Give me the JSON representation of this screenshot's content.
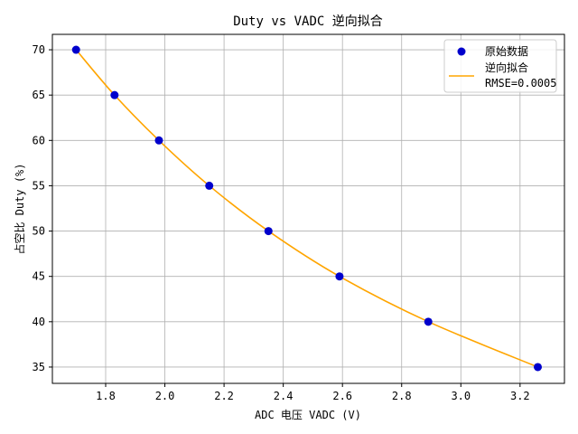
{
  "chart_data": {
    "type": "scatter",
    "title": "Duty vs VADC 逆向拟合",
    "xlabel": "ADC 电压 VADC (V)",
    "ylabel": "占空比 Duty (%)",
    "xlim": [
      1.62,
      3.35
    ],
    "ylim": [
      33.2,
      71.7
    ],
    "xticks": [
      1.8,
      2.0,
      2.2,
      2.4,
      2.6,
      2.8,
      3.0,
      3.2
    ],
    "yticks": [
      35,
      40,
      45,
      50,
      55,
      60,
      65,
      70
    ],
    "grid": true,
    "legend_position": "top-right",
    "colors": {
      "points": "#0000cc",
      "fit": "#ffa500",
      "grid": "#b0b0b0"
    },
    "series": [
      {
        "name": "原始数据",
        "kind": "scatter",
        "x": [
          1.7,
          1.83,
          1.98,
          2.15,
          2.35,
          2.59,
          2.89,
          3.26
        ],
        "y": [
          70,
          65,
          60,
          55,
          50,
          45,
          40,
          35
        ]
      },
      {
        "name": "逆向拟合",
        "name_line2": "RMSE=0.0005",
        "kind": "line",
        "x": [
          1.7,
          1.83,
          1.98,
          2.15,
          2.35,
          2.59,
          2.89,
          3.26
        ],
        "y": [
          70,
          65,
          60,
          55,
          50,
          45,
          40,
          35
        ]
      }
    ]
  }
}
